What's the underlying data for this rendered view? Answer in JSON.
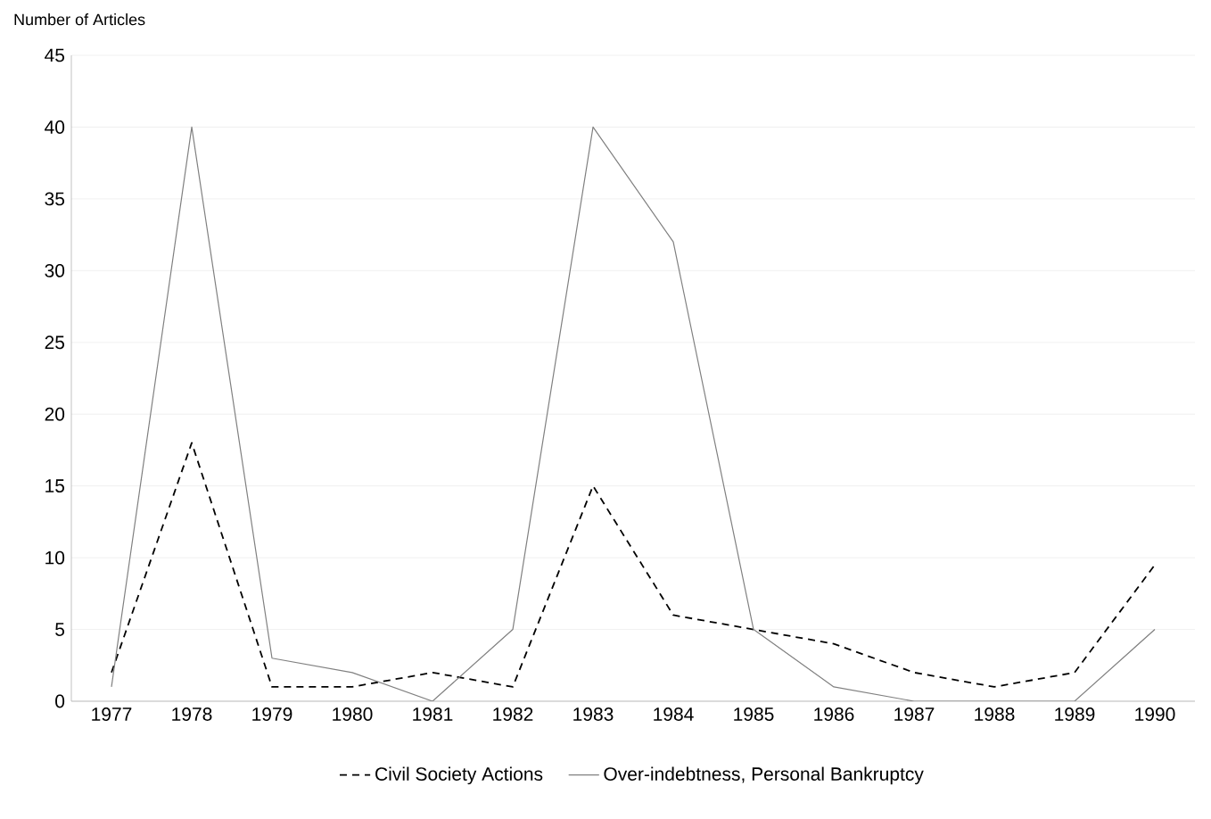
{
  "chart_data": {
    "type": "line",
    "ylabel": "Number of Articles",
    "categories": [
      "1977",
      "1978",
      "1979",
      "1980",
      "1981",
      "1982",
      "1983",
      "1984",
      "1985",
      "1986",
      "1987",
      "1988",
      "1989",
      "1990"
    ],
    "series": [
      {
        "name": "Civil Society Actions",
        "color": "#000000",
        "line_style": "dashed",
        "values": [
          2,
          18,
          1,
          1,
          2,
          1,
          15,
          6,
          5,
          4,
          2,
          1,
          2,
          9.5
        ]
      },
      {
        "name": "Over-indebtness, Personal Bankruptcy",
        "color": "#808080",
        "line_style": "solid",
        "values": [
          1,
          40,
          3,
          2,
          0,
          5,
          40,
          32,
          5,
          1,
          0,
          0,
          0,
          5
        ]
      }
    ],
    "ylim": [
      0,
      45
    ],
    "yticks": [
      0,
      5,
      10,
      15,
      20,
      25,
      30,
      35,
      40,
      45
    ],
    "grid": "y",
    "legend": "bottom",
    "marker": "none"
  }
}
